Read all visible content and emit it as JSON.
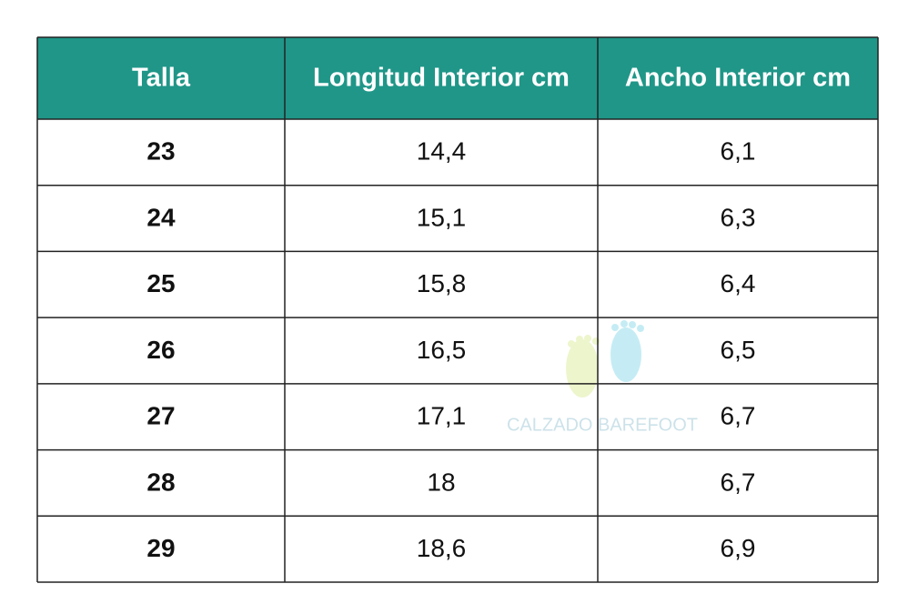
{
  "table": {
    "header": [
      "Talla",
      "Longitud Interior cm",
      "Ancho Interior cm"
    ],
    "rows": [
      [
        "23",
        "14,4",
        "6,1"
      ],
      [
        "24",
        "15,1",
        "6,3"
      ],
      [
        "25",
        "15,8",
        "6,4"
      ],
      [
        "26",
        "16,5",
        "6,5"
      ],
      [
        "27",
        "17,1",
        "6,7"
      ],
      [
        "28",
        "18",
        "6,7"
      ],
      [
        "29",
        "18,6",
        "6,9"
      ]
    ]
  },
  "watermark": "CALZADO BAREFOOT"
}
